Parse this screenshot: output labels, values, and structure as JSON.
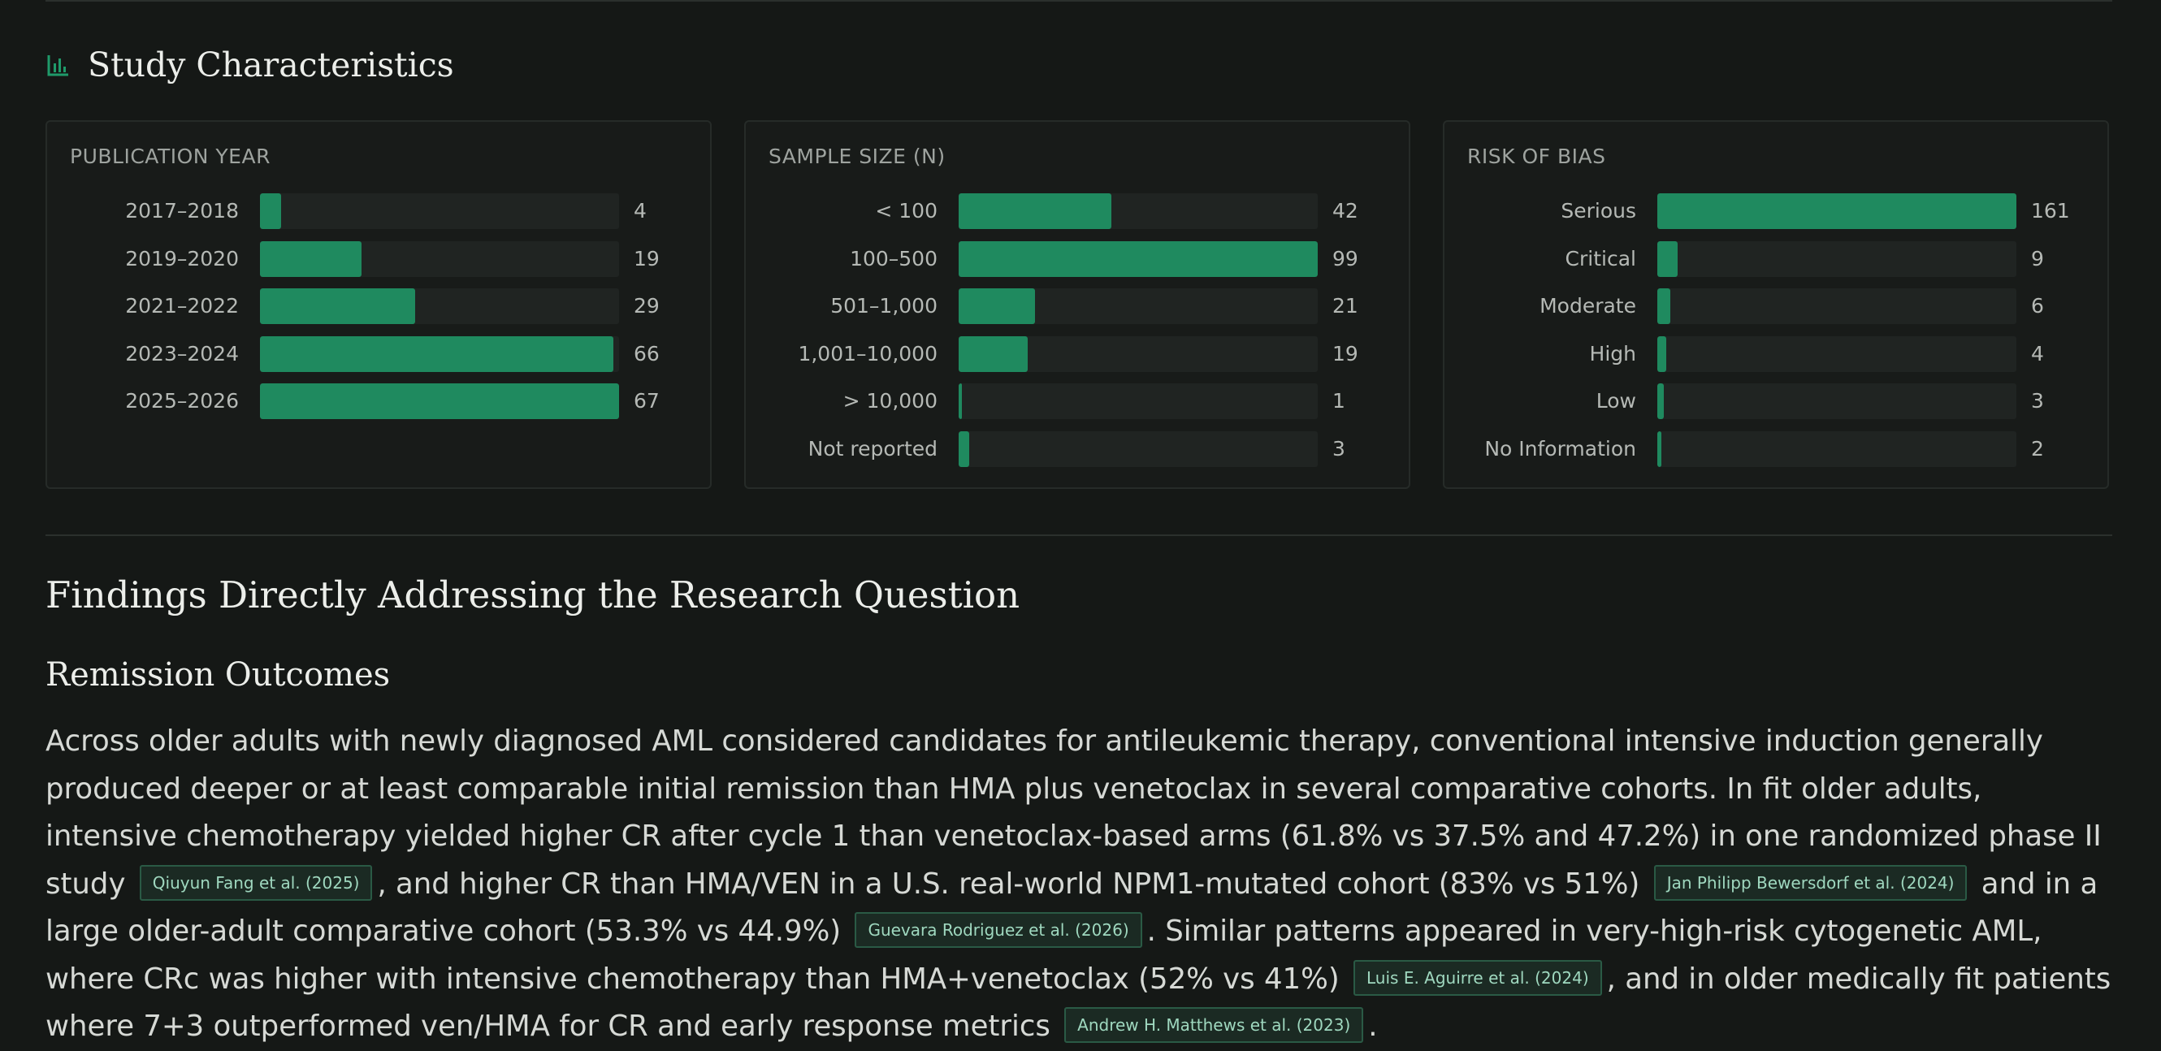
{
  "section": {
    "title": "Study Characteristics",
    "icon": "bar-chart-icon"
  },
  "colors": {
    "background": "#151816",
    "bar_fill": "#1f8a5f",
    "bar_track": "#202422",
    "citation_text": "#9fd8bf"
  },
  "chart_data": [
    {
      "type": "bar",
      "orientation": "horizontal",
      "title": "PUBLICATION YEAR",
      "categories": [
        "2017–2018",
        "2019–2020",
        "2021–2022",
        "2023–2024",
        "2025–2026"
      ],
      "values": [
        4,
        19,
        29,
        66,
        67
      ]
    },
    {
      "type": "bar",
      "orientation": "horizontal",
      "title": "SAMPLE SIZE (N)",
      "categories": [
        "< 100",
        "100–500",
        "501–1,000",
        "1,001–10,000",
        "> 10,000",
        "Not reported"
      ],
      "values": [
        42,
        99,
        21,
        19,
        1,
        3
      ]
    },
    {
      "type": "bar",
      "orientation": "horizontal",
      "title": "RISK OF BIAS",
      "categories": [
        "Serious",
        "Critical",
        "Moderate",
        "High",
        "Low",
        "No Information"
      ],
      "values": [
        161,
        9,
        6,
        4,
        3,
        2
      ]
    }
  ],
  "findings": {
    "title": "Findings Directly Addressing the Research Question",
    "subsection": "Remission Outcomes",
    "paragraph": {
      "s1": "Across older adults with newly diagnosed AML considered candidates for antileukemic therapy, conventional intensive induction generally produced deeper or at least comparable initial remission than HMA plus venetoclax in several comparative cohorts. In fit older adults, intensive chemotherapy yielded higher CR after cycle 1 than venetoclax-based arms (61.8% vs 37.5% and 47.2%) in one randomized phase II study",
      "c1": "Qiuyun Fang et al. (2025)",
      "s2": ", and higher CR than HMA/VEN in a U.S. real-world NPM1-mutated cohort (83% vs 51%)",
      "c2": "Jan Philipp Bewersdorf et al. (2024)",
      "s3": "and in a large older-adult comparative cohort (53.3% vs 44.9%)",
      "c3": "Guevara Rodriguez et al. (2026)",
      "s4": ". Similar patterns appeared in very-high-risk cytogenetic AML, where CRc was higher with intensive chemotherapy than HMA+venetoclax (52% vs 41%)",
      "c4": "Luis E. Aguirre et al. (2024)",
      "s5": ", and in older medically fit patients where 7+3 outperformed ven/HMA for CR and early response metrics",
      "c5": "Andrew H. Matthews et al. (2023)",
      "s6": "."
    }
  }
}
